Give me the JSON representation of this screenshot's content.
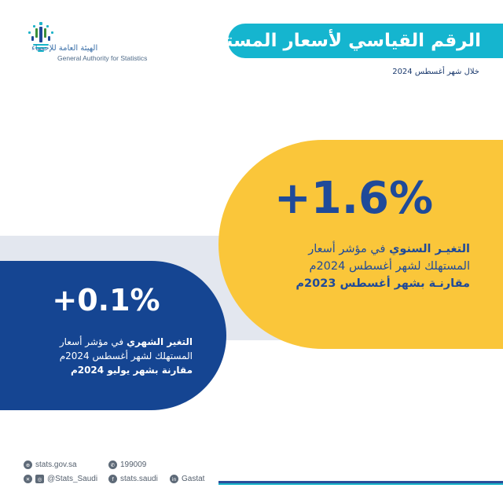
{
  "header": {
    "logo_ar": "الهيئة العامة للإحصاء",
    "logo_en": "General Authority for Statistics",
    "title": "الرقم القياسي لأسعار المستهلك",
    "subtitle": "خلال شهر أغسطس 2024"
  },
  "annual": {
    "value": "+1.6%",
    "label_bold": "التغيـر السنوي",
    "label_rest": " في مؤشر أسعار",
    "line2": "المستهلك لشهر أغسطس 2024م",
    "line3": "مقارنـة بشهر أغسطس 2023م"
  },
  "monthly": {
    "value": "+0.1%",
    "label_bold": "التغير الشهري",
    "label_rest": " في مؤشر أسعار",
    "line2": "المستهلك لشهر أغسطس 2024م",
    "line3": "مقارنة بشهر يوليو 2024م"
  },
  "footer": {
    "website": "stats.gov.sa",
    "phone": "199009",
    "social": "@Stats_Saudi",
    "facebook": "stats.saudi",
    "linkedin": "Gastat"
  },
  "colors": {
    "title_banner": "#15b5cf",
    "yellow": "#fac63a",
    "blue": "#154592",
    "text_blue": "#1f4a99"
  },
  "icons": [
    "logo-icon",
    "globe-icon",
    "phone-icon",
    "x-icon",
    "instagram-icon",
    "facebook-icon",
    "linkedin-icon"
  ]
}
